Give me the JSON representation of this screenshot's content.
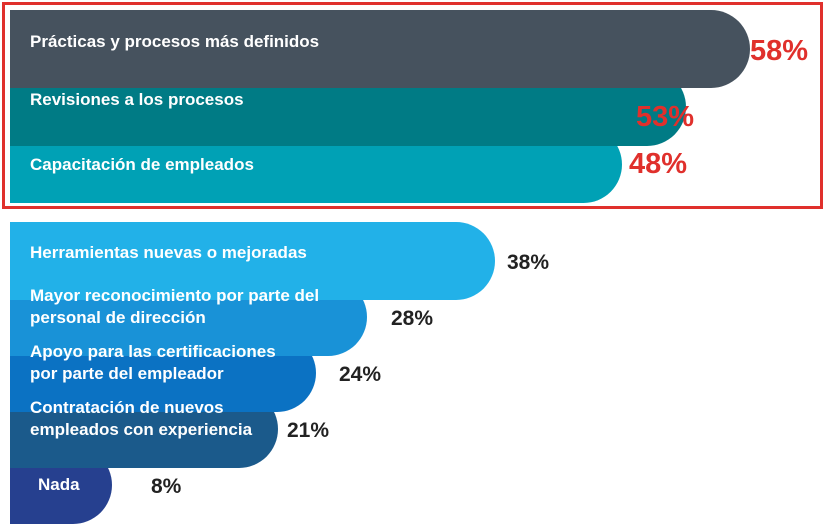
{
  "chart_data": {
    "type": "bar",
    "orientation": "horizontal",
    "categories": [
      "Prácticas y procesos más definidos",
      "Revisiones a los procesos",
      "Capacitación de empleados",
      "Herramientas nuevas o mejoradas",
      "Mayor reconocimiento por parte del personal de dirección",
      "Apoyo para las certificaciones por parte del empleador",
      "Contratación de nuevos empleados con experiencia",
      "Nada"
    ],
    "values": [
      58,
      53,
      48,
      38,
      28,
      24,
      21,
      8
    ],
    "value_labels": [
      "58%",
      "53%",
      "48%",
      "38%",
      "28%",
      "24%",
      "21%",
      "8%"
    ],
    "highlighted_count": 3,
    "colors": [
      "#46525e",
      "#007b85",
      "#00a1b5",
      "#22b1e8",
      "#1992d7",
      "#0b72c3",
      "#1b5a8b",
      "#26408f"
    ],
    "highlight_color": "#e0302c",
    "value_label_color": "#222222",
    "legend": "none",
    "grid": false
  }
}
